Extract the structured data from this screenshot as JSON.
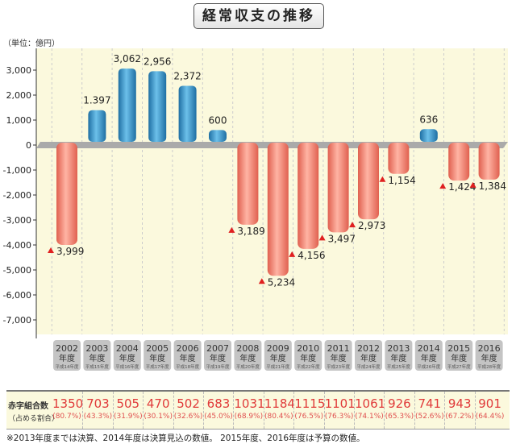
{
  "chart_data": {
    "type": "bar",
    "title": "経常収支の推移",
    "ylabel": "（単位：億円）",
    "ylim": [
      -7500,
      3800
    ],
    "yticks": [
      "3,000",
      "2,000",
      "1,000",
      "0",
      "-1,000",
      "-2,000",
      "-3,000",
      "-4,000",
      "-5,000",
      "-6,000",
      "-7,000"
    ],
    "ytick_values": [
      3000,
      2000,
      1000,
      0,
      -1000,
      -2000,
      -3000,
      -4000,
      -5000,
      -6000,
      -7000
    ],
    "categories": [
      "2002",
      "2003",
      "2004",
      "2005",
      "2006",
      "2007",
      "2008",
      "2009",
      "2010",
      "2011",
      "2012",
      "2013",
      "2014",
      "2015",
      "2016"
    ],
    "category_suffix": "年度",
    "era_labels": [
      "平成14年度",
      "平成15年度",
      "平成16年度",
      "平成17年度",
      "平成18年度",
      "平成19年度",
      "平成20年度",
      "平成21年度",
      "平成22年度",
      "平成23年度",
      "平成24年度",
      "平成25年度",
      "平成26年度",
      "平成27年度",
      "平成28年度"
    ],
    "values": [
      -3999,
      1397,
      3062,
      2956,
      2372,
      600,
      -3189,
      -5234,
      -4156,
      -3497,
      -2973,
      -1154,
      636,
      -1424,
      -1384
    ],
    "data_labels": [
      "3,999",
      "1.397",
      "3,062",
      "2,956",
      "2,372",
      "600",
      "3,189",
      "5,234",
      "4,156",
      "3,497",
      "2,973",
      "1,154",
      "636",
      "1,424",
      "1,384"
    ],
    "colors": {
      "positive": "#3b93c6",
      "negative": "#f07f6c",
      "marker": "#e02020",
      "background": "#fbf9dd"
    }
  },
  "table": {
    "header1": "赤字組合数",
    "header2": "（占める割合）",
    "counts": [
      "1350",
      "703",
      "505",
      "470",
      "502",
      "683",
      "1031",
      "1184",
      "1115",
      "1101",
      "1061",
      "926",
      "741",
      "943",
      "901"
    ],
    "ratios": [
      "(80.7%)",
      "(43.3%)",
      "(31.9%)",
      "(30.1%)",
      "(32.6%)",
      "(45.0%)",
      "(68.9%)",
      "(80.4%)",
      "(76.5%)",
      "(76.3%)",
      "(74.1%)",
      "(65.3%)",
      "(52.6%)",
      "(67.2%)",
      "(64.4%)"
    ]
  },
  "footnote": "※2013年度までは決算、2014年度は決算見込の数値。 2015年度、2016年度は予算の数値。"
}
